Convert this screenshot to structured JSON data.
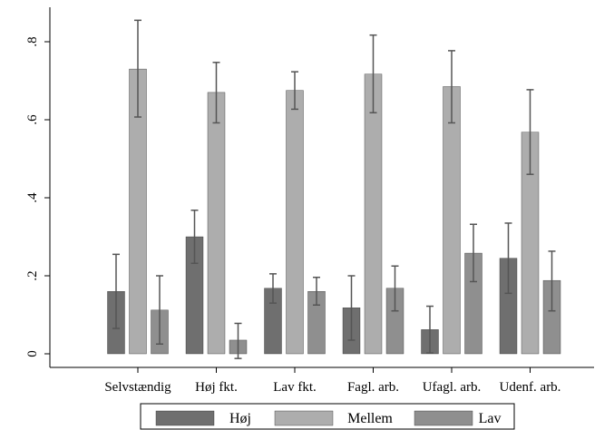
{
  "chart_data": {
    "type": "bar",
    "title": "",
    "xlabel": "",
    "ylabel": "",
    "ylim": [
      0,
      0.85
    ],
    "yticks": [
      {
        "value": 0,
        "label": "0"
      },
      {
        "value": 0.2,
        "label": ".2"
      },
      {
        "value": 0.4,
        "label": ".4"
      },
      {
        "value": 0.6,
        "label": ".6"
      },
      {
        "value": 0.8,
        "label": ".8"
      }
    ],
    "grid": false,
    "legend_position": "bottom",
    "error_bars": true,
    "categories": [
      "Selvstændig",
      "Høj fkt.",
      "Lav fkt.",
      "Fagl. arb.",
      "Ufagl. arb.",
      "Udenf. arb."
    ],
    "series": [
      {
        "name": "Høj",
        "color": "#6f6f6f",
        "values": [
          0.16,
          0.3,
          0.168,
          0.118,
          0.062,
          0.245
        ],
        "lower": [
          0.065,
          0.232,
          0.13,
          0.035,
          0.002,
          0.155
        ],
        "upper": [
          0.255,
          0.368,
          0.205,
          0.2,
          0.122,
          0.335
        ]
      },
      {
        "name": "Mellem",
        "color": "#adadad",
        "values": [
          0.73,
          0.67,
          0.675,
          0.717,
          0.685,
          0.568
        ],
        "lower": [
          0.607,
          0.592,
          0.627,
          0.618,
          0.592,
          0.46
        ],
        "upper": [
          0.855,
          0.747,
          0.723,
          0.817,
          0.777,
          0.677
        ]
      },
      {
        "name": "Lav",
        "color": "#8f8f8f",
        "values": [
          0.112,
          0.035,
          0.16,
          0.168,
          0.258,
          0.188
        ],
        "lower": [
          0.025,
          -0.012,
          0.125,
          0.11,
          0.185,
          0.11
        ],
        "upper": [
          0.2,
          0.078,
          0.196,
          0.225,
          0.332,
          0.263
        ]
      }
    ]
  }
}
